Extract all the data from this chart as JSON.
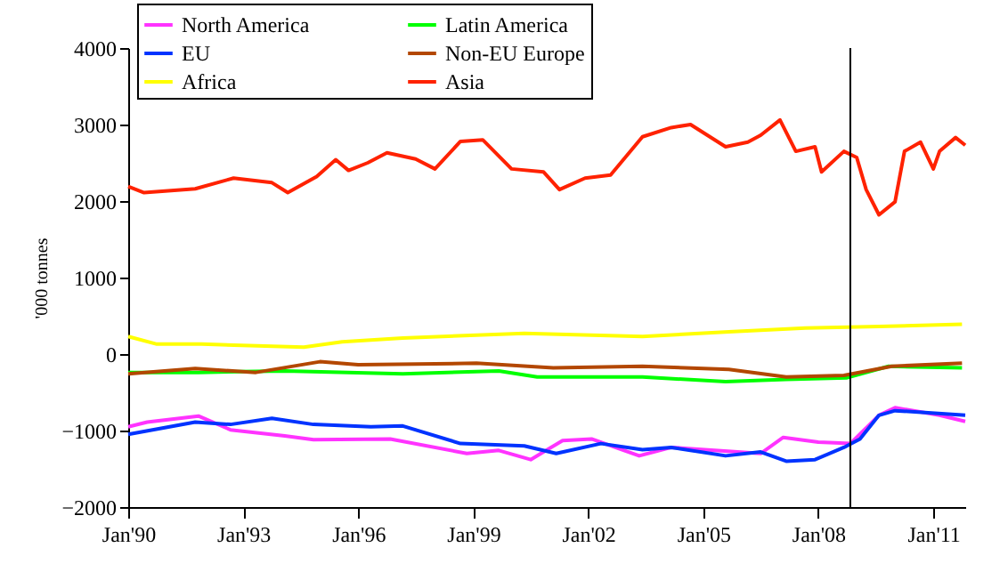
{
  "chart_data": {
    "type": "line",
    "ylabel": "'000 tonnes",
    "xlim": [
      "1990-01",
      "2011-11"
    ],
    "ylim": [
      -2000,
      4000
    ],
    "xticks": [
      {
        "value": "1990-01",
        "label": "Jan'90"
      },
      {
        "value": "1993-01",
        "label": "Jan'93"
      },
      {
        "value": "1996-01",
        "label": "Jan'96"
      },
      {
        "value": "1999-01",
        "label": "Jan'99"
      },
      {
        "value": "2002-01",
        "label": "Jan'02"
      },
      {
        "value": "2005-01",
        "label": "Jan'05"
      },
      {
        "value": "2008-01",
        "label": "Jan'08"
      },
      {
        "value": "2011-01",
        "label": "Jan'11"
      }
    ],
    "yticks": [
      -2000,
      -1000,
      0,
      1000,
      2000,
      3000,
      4000
    ],
    "legend": "top left",
    "ref_lines": [
      {
        "axis": "x",
        "value": "2008-11",
        "color": "#000000"
      }
    ],
    "series": [
      {
        "name": "North America",
        "color": "#ff33ff",
        "x": [
          "1990-01",
          "1990-07",
          "1991-11",
          "1992-09",
          "1994-02",
          "1994-11",
          "1996-11",
          "1998-11",
          "1999-09",
          "2000-07",
          "2001-05",
          "2002-02",
          "2003-05",
          "2004-03",
          "2006-07",
          "2007-02",
          "2008-01",
          "2008-11",
          "2009-08",
          "2010-01",
          "2011-03",
          "2011-11"
        ],
        "values": [
          -950,
          -890,
          -810,
          -990,
          -1070,
          -1120,
          -1110,
          -1300,
          -1260,
          -1380,
          -1130,
          -1110,
          -1330,
          -1220,
          -1300,
          -1090,
          -1150,
          -1170,
          -800,
          -700,
          -800,
          -880
        ]
      },
      {
        "name": "Latin America",
        "color": "#00ff00",
        "x": [
          "1990-01",
          "1991-11",
          "1994-02",
          "1997-03",
          "1999-09",
          "2000-09",
          "2003-06",
          "2005-08",
          "2007-03",
          "2008-10",
          "2009-11",
          "2011-10"
        ],
        "values": [
          -240,
          -240,
          -220,
          -260,
          -220,
          -300,
          -300,
          -360,
          -330,
          -310,
          -160,
          -180
        ]
      },
      {
        "name": "EU",
        "color": "#0033ff",
        "x": [
          "1990-01",
          "1991-10",
          "1992-09",
          "1993-10",
          "1994-11",
          "1996-05",
          "1997-03",
          "1998-09",
          "2000-05",
          "2001-03",
          "2002-05",
          "2003-06",
          "2004-03",
          "2005-08",
          "2006-07",
          "2007-03",
          "2007-12",
          "2008-09",
          "2009-02",
          "2009-08",
          "2010-01",
          "2011-11"
        ],
        "values": [
          -1050,
          -890,
          -920,
          -840,
          -920,
          -950,
          -940,
          -1170,
          -1200,
          -1300,
          -1170,
          -1250,
          -1220,
          -1330,
          -1280,
          -1400,
          -1380,
          -1220,
          -1110,
          -800,
          -740,
          -800
        ]
      },
      {
        "name": "Non-EU Europe",
        "color": "#b34700",
        "x": [
          "1990-01",
          "1991-10",
          "1993-05",
          "1995-01",
          "1996-01",
          "1999-02",
          "2001-02",
          "2003-06",
          "2005-09",
          "2007-03",
          "2008-09",
          "2009-12",
          "2011-10"
        ],
        "values": [
          -260,
          -190,
          -240,
          -100,
          -140,
          -120,
          -180,
          -160,
          -200,
          -300,
          -280,
          -160,
          -120
        ]
      },
      {
        "name": "Africa",
        "color": "#ffff00",
        "x": [
          "1990-01",
          "1990-10",
          "1991-12",
          "1994-08",
          "1995-08",
          "1997-03",
          "2000-05",
          "2003-06",
          "2005-09",
          "2007-09",
          "2009-08",
          "2011-10"
        ],
        "values": [
          230,
          130,
          130,
          90,
          160,
          210,
          270,
          230,
          290,
          340,
          360,
          390
        ]
      },
      {
        "name": "Asia",
        "color": "#ff2200",
        "x": [
          "1990-01",
          "1990-06",
          "1991-10",
          "1992-10",
          "1993-10",
          "1994-03",
          "1994-12",
          "1995-06",
          "1995-10",
          "1996-04",
          "1996-10",
          "1997-07",
          "1998-01",
          "1998-09",
          "1999-04",
          "2000-01",
          "2000-11",
          "2001-04",
          "2001-12",
          "2002-08",
          "2003-06",
          "2004-03",
          "2004-09",
          "2005-08",
          "2006-03",
          "2006-07",
          "2007-01",
          "2007-06",
          "2007-12",
          "2008-02",
          "2008-09",
          "2009-01",
          "2009-04",
          "2009-08",
          "2010-01",
          "2010-04",
          "2010-09",
          "2011-01",
          "2011-03",
          "2011-08",
          "2011-11"
        ],
        "values": [
          2190,
          2110,
          2160,
          2300,
          2240,
          2110,
          2320,
          2540,
          2400,
          2500,
          2630,
          2550,
          2420,
          2780,
          2800,
          2420,
          2380,
          2150,
          2300,
          2340,
          2840,
          2960,
          3000,
          2710,
          2770,
          2860,
          3060,
          2650,
          2710,
          2380,
          2650,
          2570,
          2150,
          1820,
          1990,
          2650,
          2770,
          2420,
          2650,
          2830,
          2730
        ]
      }
    ]
  }
}
